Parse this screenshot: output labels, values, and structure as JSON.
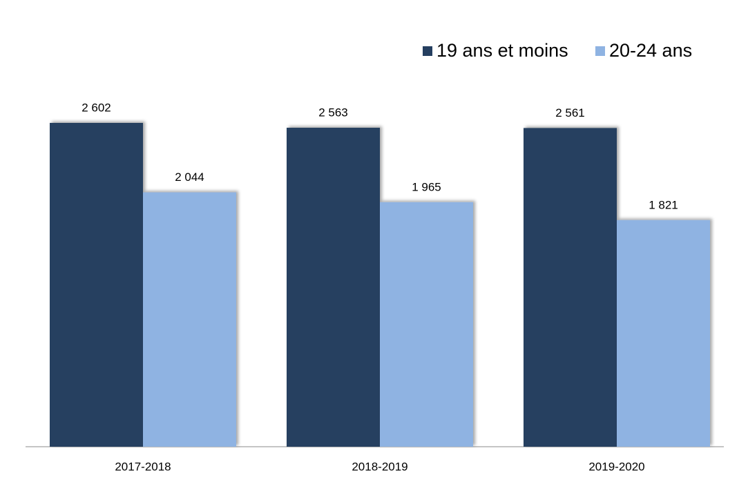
{
  "chart_data": {
    "type": "bar",
    "categories": [
      "2017-2018",
      "2018-2019",
      "2019-2020"
    ],
    "series": [
      {
        "name": "19 ans et moins",
        "color": "#253f60",
        "values": [
          2602,
          2563,
          2561
        ],
        "value_labels": [
          "2 602",
          "2 563",
          "2 561"
        ]
      },
      {
        "name": "20-24 ans",
        "color": "#8fb3e2",
        "values": [
          2044,
          1965,
          1821
        ],
        "value_labels": [
          "2 044",
          "1 965",
          "1 821"
        ]
      }
    ],
    "legend": "top-right"
  }
}
